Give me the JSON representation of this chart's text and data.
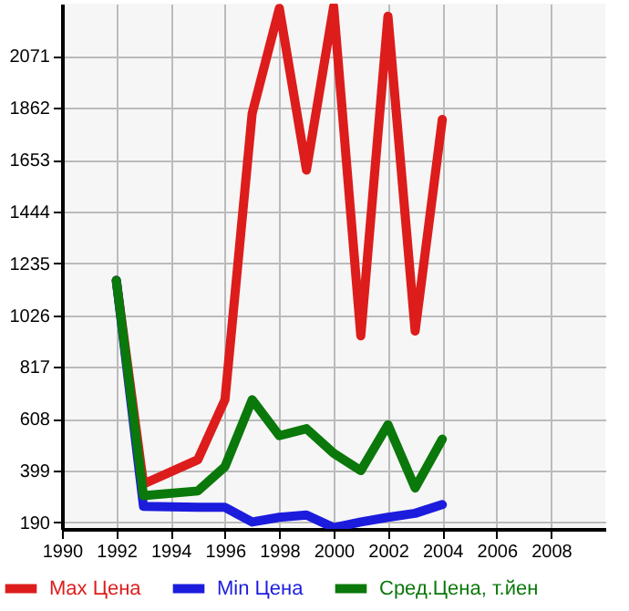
{
  "chart_data": {
    "type": "line",
    "x": [
      1992,
      1993,
      1995,
      1996,
      1997,
      1998,
      1999,
      2000,
      2001,
      2002,
      2003,
      2004
    ],
    "series": [
      {
        "name": "Max Цена",
        "color": "#dd1c1c",
        "values": [
          1166,
          345,
          443,
          685,
          1839,
          2263,
          1611,
          2270,
          943,
          2231,
          962,
          1815
        ]
      },
      {
        "name": "Min Цена",
        "color": "#1c1cdd",
        "values": [
          1166,
          255,
          251,
          251,
          192,
          211,
          220,
          169,
          192,
          211,
          227,
          262
        ]
      },
      {
        "name": "Сред.Цена, т.йен",
        "color": "#0a780a",
        "values": [
          1166,
          298,
          317,
          415,
          685,
          540,
          568,
          469,
          399,
          584,
          329,
          526
        ]
      }
    ],
    "xlim": [
      1990,
      2010
    ],
    "xticks": [
      1990,
      1992,
      1994,
      1996,
      1998,
      2000,
      2002,
      2004,
      2006,
      2008
    ],
    "ylim": [
      164,
      2282
    ],
    "yticks": [
      190,
      399,
      608,
      817,
      1026,
      1235,
      1444,
      1653,
      1862,
      2071
    ],
    "grid": true,
    "legend": "bottom",
    "marker": "none",
    "line_style": "solid"
  }
}
